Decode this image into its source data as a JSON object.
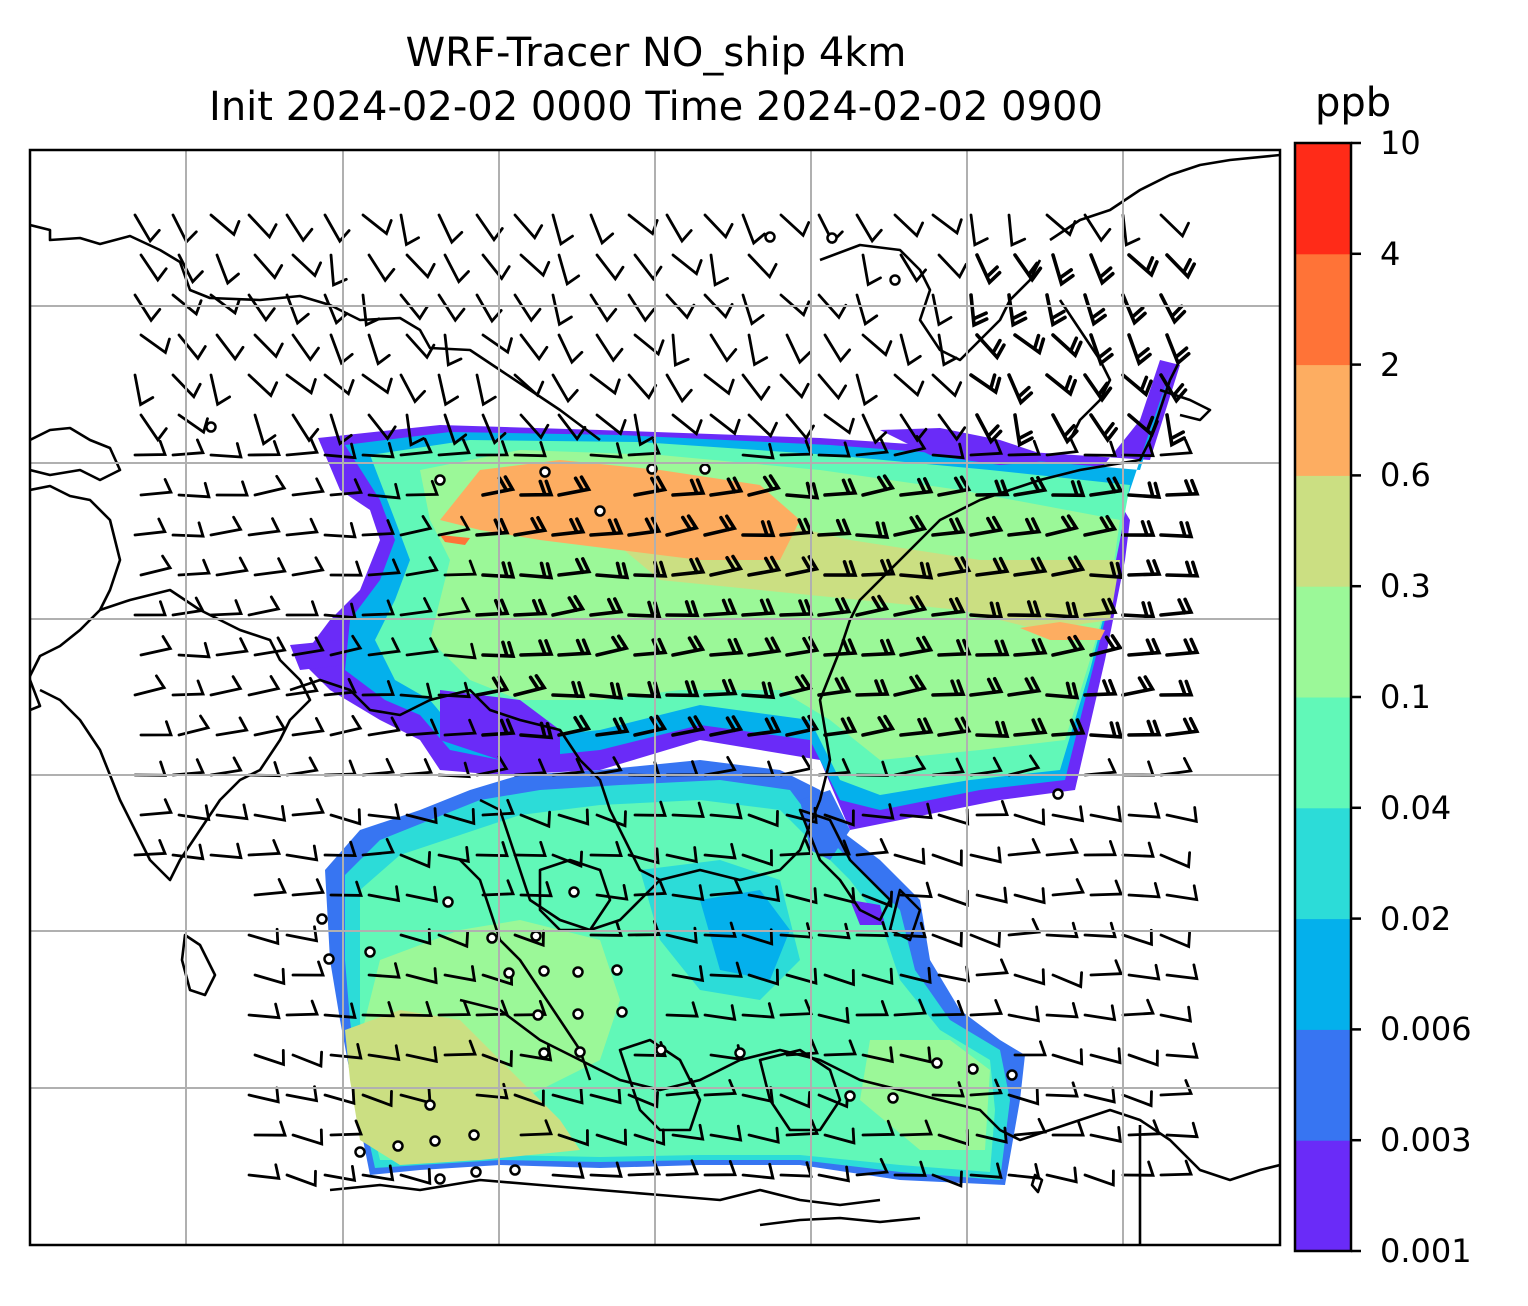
{
  "title": {
    "line1": "WRF-Tracer NO_ship 4km",
    "line2": "Init 2024-02-02 0000 Time 2024-02-02 0900"
  },
  "colorbar": {
    "unit": "ppb",
    "levels": [
      "0.001",
      "0.003",
      "0.006",
      "0.02",
      "0.04",
      "0.1",
      "0.3",
      "0.6",
      "2",
      "4",
      "10"
    ],
    "colors": [
      "#6a2bf8",
      "#3775f2",
      "#04b0ec",
      "#2cdcd8",
      "#61f8b8",
      "#9bf898",
      "#cbdf82",
      "#fdad61",
      "#ff7337",
      "#ff2b18"
    ]
  },
  "map": {
    "gridlines": true,
    "coastline_color": "#000000",
    "grid_color": "#b0b0b0"
  }
}
